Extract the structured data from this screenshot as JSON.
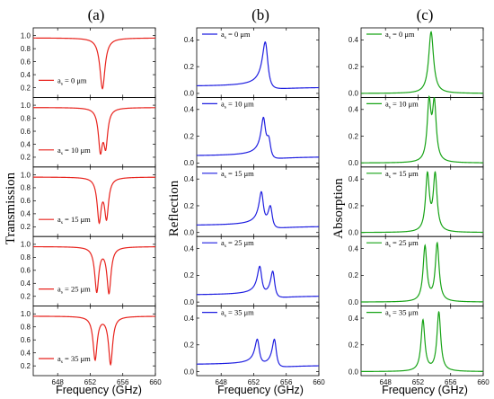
{
  "figure": {
    "column_labels": [
      "(a)",
      "(b)",
      "(c)"
    ],
    "xlabel": "Frequency (GHz)"
  },
  "chart_data": [
    {
      "type": "line",
      "id": "transmission",
      "column": "(a)",
      "ylabel": "Transmission",
      "color": "#e8231d",
      "xlim": [
        645,
        660
      ],
      "xticks": [
        648,
        652,
        656,
        660
      ],
      "ylim": [
        0.05,
        1.12
      ],
      "yticks": [
        0.2,
        0.4,
        0.6,
        0.8,
        1.0
      ],
      "ytick_labels": [
        "0.2",
        "0.4",
        "0.6",
        "0.8",
        "1.0"
      ],
      "legend_position": "bottom-left",
      "series": [
        {
          "name": "a_s = 0 μm",
          "legend_main": "a",
          "legend_sub": "s",
          "legend_rest": " = 0 μm",
          "baseline": 0.965,
          "shape": "dip",
          "peaks": [
            {
              "x0": 653.5,
              "w": 0.38,
              "h": 0.78
            }
          ]
        },
        {
          "name": "a_s = 10 μm",
          "legend_main": "a",
          "legend_sub": "s",
          "legend_rest": " = 10 μm",
          "baseline": 0.965,
          "shape": "dip",
          "peaks": [
            {
              "x0": 653.25,
              "w": 0.3,
              "h": 0.62
            },
            {
              "x0": 653.9,
              "w": 0.3,
              "h": 0.55
            }
          ]
        },
        {
          "name": "a_s = 15 μm",
          "legend_main": "a",
          "legend_sub": "s",
          "legend_rest": " = 15 μm",
          "baseline": 0.965,
          "shape": "dip",
          "peaks": [
            {
              "x0": 653.1,
              "w": 0.3,
              "h": 0.65
            },
            {
              "x0": 654.0,
              "w": 0.3,
              "h": 0.6
            }
          ]
        },
        {
          "name": "a_s = 25 μm",
          "legend_main": "a",
          "legend_sub": "s",
          "legend_rest": " = 25 μm",
          "baseline": 0.965,
          "shape": "dip",
          "peaks": [
            {
              "x0": 652.8,
              "w": 0.3,
              "h": 0.68
            },
            {
              "x0": 654.3,
              "w": 0.3,
              "h": 0.7
            }
          ]
        },
        {
          "name": "a_s = 35 μm",
          "legend_main": "a",
          "legend_sub": "s",
          "legend_rest": " = 35 μm",
          "baseline": 0.965,
          "shape": "dip",
          "peaks": [
            {
              "x0": 652.6,
              "w": 0.3,
              "h": 0.66
            },
            {
              "x0": 654.5,
              "w": 0.3,
              "h": 0.73
            }
          ]
        }
      ]
    },
    {
      "type": "line",
      "id": "reflection",
      "column": "(b)",
      "ylabel": "Reflection",
      "color": "#1f1fe0",
      "xlim": [
        645,
        660
      ],
      "xticks": [
        648,
        652,
        656,
        660
      ],
      "ylim": [
        -0.03,
        0.49
      ],
      "yticks": [
        0.0,
        0.2,
        0.4
      ],
      "ytick_labels": [
        "0.0",
        "0.2",
        "0.4"
      ],
      "legend_position": "top-left",
      "series": [
        {
          "name": "a_s = 0 μm",
          "legend_main": "a",
          "legend_sub": "s",
          "legend_rest": " = 0 μm",
          "baseline": 0.05,
          "shape": "fano",
          "peaks": [
            {
              "x0": 653.5,
              "w": 0.4,
              "h": 0.32
            }
          ]
        },
        {
          "name": "a_s = 10 μm",
          "legend_main": "a",
          "legend_sub": "s",
          "legend_rest": " = 10 μm",
          "baseline": 0.05,
          "shape": "fano",
          "peaks": [
            {
              "x0": 653.25,
              "w": 0.32,
              "h": 0.24
            },
            {
              "x0": 653.9,
              "w": 0.3,
              "h": 0.13
            }
          ]
        },
        {
          "name": "a_s = 15 μm",
          "legend_main": "a",
          "legend_sub": "s",
          "legend_rest": " = 15 μm",
          "baseline": 0.05,
          "shape": "fano",
          "peaks": [
            {
              "x0": 653.0,
              "w": 0.32,
              "h": 0.22
            },
            {
              "x0": 654.1,
              "w": 0.3,
              "h": 0.15
            }
          ]
        },
        {
          "name": "a_s = 25 μm",
          "legend_main": "a",
          "legend_sub": "s",
          "legend_rest": " = 25 μm",
          "baseline": 0.05,
          "shape": "fano",
          "peaks": [
            {
              "x0": 652.8,
              "w": 0.32,
              "h": 0.19
            },
            {
              "x0": 654.4,
              "w": 0.3,
              "h": 0.18
            }
          ]
        },
        {
          "name": "a_s = 35 μm",
          "legend_main": "a",
          "legend_sub": "s",
          "legend_rest": " = 35 μm",
          "baseline": 0.05,
          "shape": "fano",
          "peaks": [
            {
              "x0": 652.5,
              "w": 0.32,
              "h": 0.17
            },
            {
              "x0": 654.6,
              "w": 0.3,
              "h": 0.19
            }
          ]
        }
      ]
    },
    {
      "type": "line",
      "id": "absorption",
      "column": "(c)",
      "ylabel": "Absorption",
      "color": "#17a316",
      "xlim": [
        645,
        660
      ],
      "xticks": [
        648,
        652,
        656,
        660
      ],
      "ylim": [
        -0.03,
        0.49
      ],
      "yticks": [
        0.0,
        0.2,
        0.4
      ],
      "ytick_labels": [
        "0.0",
        "0.2",
        "0.4"
      ],
      "legend_position": "top-left",
      "series": [
        {
          "name": "a_s = 0 μm",
          "legend_main": "a",
          "legend_sub": "s",
          "legend_rest": " = 0 μm",
          "baseline": 0.0,
          "shape": "peak",
          "peaks": [
            {
              "x0": 653.6,
              "w": 0.36,
              "h": 0.46
            }
          ]
        },
        {
          "name": "a_s = 10 μm",
          "legend_main": "a",
          "legend_sub": "s",
          "legend_rest": " = 10 μm",
          "baseline": 0.0,
          "shape": "peak",
          "peaks": [
            {
              "x0": 653.35,
              "w": 0.28,
              "h": 0.43
            },
            {
              "x0": 654.0,
              "w": 0.28,
              "h": 0.42
            }
          ]
        },
        {
          "name": "a_s = 15 μm",
          "legend_main": "a",
          "legend_sub": "s",
          "legend_rest": " = 15 μm",
          "baseline": 0.0,
          "shape": "peak",
          "peaks": [
            {
              "x0": 653.15,
              "w": 0.28,
              "h": 0.42
            },
            {
              "x0": 654.1,
              "w": 0.28,
              "h": 0.42
            }
          ]
        },
        {
          "name": "a_s = 25 μm",
          "legend_main": "a",
          "legend_sub": "s",
          "legend_rest": " = 25 μm",
          "baseline": 0.0,
          "shape": "peak",
          "peaks": [
            {
              "x0": 652.85,
              "w": 0.28,
              "h": 0.41
            },
            {
              "x0": 654.35,
              "w": 0.28,
              "h": 0.43
            }
          ]
        },
        {
          "name": "a_s = 35 μm",
          "legend_main": "a",
          "legend_sub": "s",
          "legend_rest": " = 35 μm",
          "baseline": 0.0,
          "shape": "peak",
          "peaks": [
            {
              "x0": 652.6,
              "w": 0.28,
              "h": 0.38
            },
            {
              "x0": 654.55,
              "w": 0.28,
              "h": 0.44
            }
          ]
        }
      ]
    }
  ]
}
